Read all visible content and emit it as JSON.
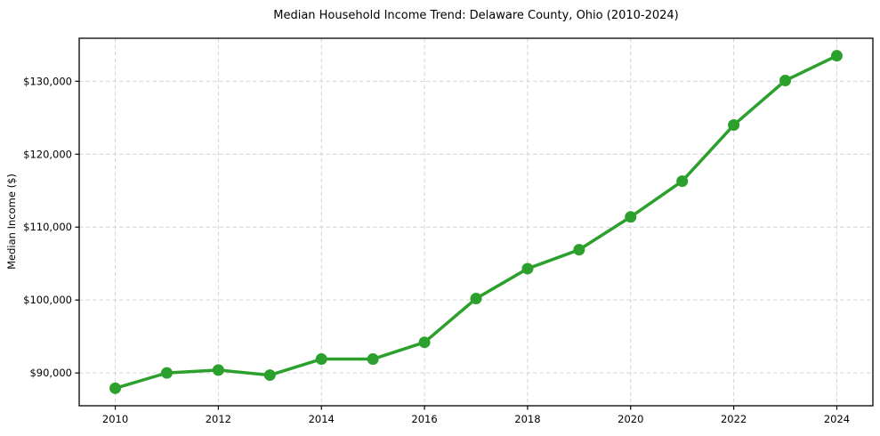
{
  "chart_data": {
    "type": "line",
    "title": "Median Household Income Trend: Delaware County, Ohio (2010-2024)",
    "xlabel": "",
    "ylabel": "Median Income ($)",
    "x": [
      2010,
      2011,
      2012,
      2013,
      2014,
      2015,
      2016,
      2017,
      2018,
      2019,
      2020,
      2021,
      2022,
      2023,
      2024
    ],
    "values": [
      87900,
      90000,
      90400,
      89700,
      91900,
      91900,
      94200,
      100200,
      104300,
      106900,
      111400,
      116300,
      124000,
      130100,
      133500
    ],
    "series_name": "Median Household Income",
    "xticks": [
      2010,
      2012,
      2014,
      2016,
      2018,
      2020,
      2022,
      2024
    ],
    "xtick_labels": [
      "2010",
      "2012",
      "2014",
      "2016",
      "2018",
      "2020",
      "2022",
      "2024"
    ],
    "yticks": [
      90000,
      100000,
      110000,
      120000,
      130000
    ],
    "ytick_labels": [
      "$90,000",
      "$100,000",
      "$110,000",
      "$120,000",
      "$130,000"
    ],
    "xlim": [
      2009.3,
      2024.7
    ],
    "ylim": [
      85500,
      135900
    ],
    "grid": "both-dashed",
    "legend": "none",
    "line_color": "#2ca02c",
    "marker": "circle",
    "background_color": "#ffffff"
  }
}
